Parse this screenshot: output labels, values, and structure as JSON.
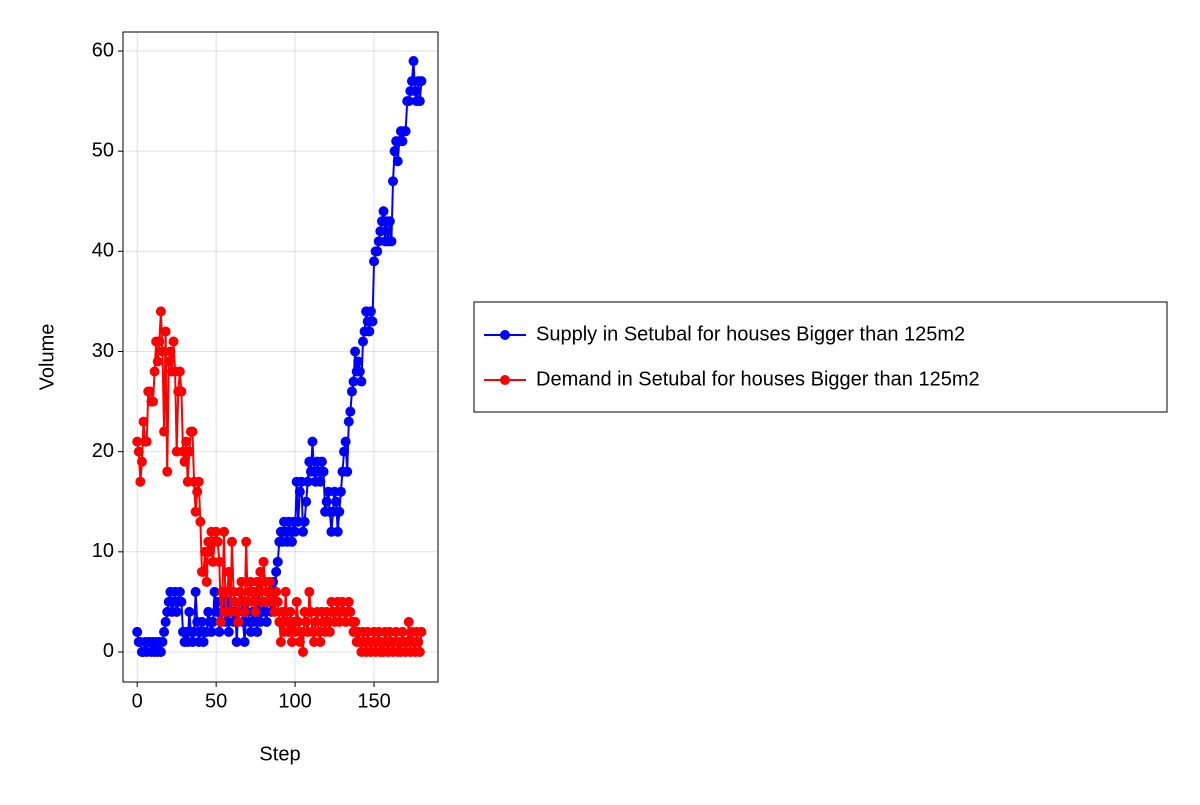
{
  "chart_data": {
    "type": "line",
    "xlabel": "Step",
    "ylabel": "Volume",
    "x": [
      0,
      1,
      2,
      3,
      4,
      5,
      6,
      7,
      8,
      9,
      10,
      11,
      12,
      13,
      14,
      15,
      16,
      17,
      18,
      19,
      20,
      21,
      22,
      23,
      24,
      25,
      26,
      27,
      28,
      29,
      30,
      31,
      32,
      33,
      34,
      35,
      36,
      37,
      38,
      39,
      40,
      41,
      42,
      43,
      44,
      45,
      46,
      47,
      48,
      49,
      50,
      51,
      52,
      53,
      54,
      55,
      56,
      57,
      58,
      59,
      60,
      61,
      62,
      63,
      64,
      65,
      66,
      67,
      68,
      69,
      70,
      71,
      72,
      73,
      74,
      75,
      76,
      77,
      78,
      79,
      80,
      81,
      82,
      83,
      84,
      85,
      86,
      87,
      88,
      89,
      90,
      91,
      92,
      93,
      94,
      95,
      96,
      97,
      98,
      99,
      100,
      101,
      102,
      103,
      104,
      105,
      106,
      107,
      108,
      109,
      110,
      111,
      112,
      113,
      114,
      115,
      116,
      117,
      118,
      119,
      120,
      121,
      122,
      123,
      124,
      125,
      126,
      127,
      128,
      129,
      130,
      131,
      132,
      133,
      134,
      135,
      136,
      137,
      138,
      139,
      140,
      141,
      142,
      143,
      144,
      145,
      146,
      147,
      148,
      149,
      150,
      151,
      152,
      153,
      154,
      155,
      156,
      157,
      158,
      159,
      160,
      161,
      162,
      163,
      164,
      165,
      166,
      167,
      168,
      169,
      170,
      171,
      172,
      173,
      174,
      175,
      176,
      177,
      178,
      179,
      180
    ],
    "series": [
      {
        "name": "Supply in Setubal for houses Bigger than 125m2",
        "color": "#0000ff",
        "values": [
          2,
          1,
          1,
          0,
          0,
          1,
          0,
          1,
          1,
          0,
          1,
          0,
          1,
          0,
          1,
          0,
          1,
          2,
          3,
          4,
          5,
          6,
          4,
          5,
          6,
          4,
          5,
          6,
          5,
          2,
          1,
          2,
          1,
          4,
          2,
          1,
          2,
          6,
          3,
          1,
          2,
          3,
          1,
          2,
          2,
          4,
          3,
          2,
          3,
          6,
          4,
          5,
          2,
          3,
          4,
          5,
          3,
          5,
          2,
          6,
          4,
          3,
          5,
          1,
          4,
          6,
          5,
          3,
          1,
          4,
          5,
          3,
          2,
          4,
          3,
          5,
          2,
          6,
          3,
          4,
          5,
          4,
          3,
          6,
          5,
          4,
          7,
          5,
          8,
          9,
          11,
          12,
          11,
          13,
          12,
          11,
          13,
          12,
          11,
          13,
          12,
          17,
          13,
          16,
          17,
          12,
          13,
          15,
          17,
          19,
          18,
          21,
          18,
          17,
          19,
          18,
          17,
          19,
          18,
          14,
          15,
          16,
          14,
          12,
          14,
          16,
          15,
          12,
          14,
          16,
          18,
          20,
          21,
          18,
          23,
          24,
          26,
          27,
          30,
          28,
          29,
          28,
          27,
          31,
          32,
          34,
          33,
          32,
          34,
          33,
          39,
          40,
          40,
          41,
          42,
          43,
          44,
          41,
          43,
          41,
          43,
          41,
          47,
          50,
          51,
          49,
          51,
          52,
          51,
          52,
          52,
          55,
          55,
          56,
          57,
          59,
          56,
          55,
          57,
          55,
          57
        ]
      },
      {
        "name": "Demand in Setubal for houses Bigger than 125m2",
        "color": "#ff0000",
        "values": [
          21,
          20,
          17,
          19,
          23,
          21,
          21,
          26,
          26,
          25,
          25,
          28,
          31,
          29,
          31,
          34,
          30,
          22,
          32,
          18,
          29,
          30,
          28,
          31,
          28,
          20,
          26,
          28,
          26,
          20,
          19,
          21,
          17,
          20,
          22,
          22,
          17,
          14,
          16,
          17,
          13,
          8,
          8,
          10,
          7,
          11,
          10,
          12,
          9,
          11,
          12,
          11,
          9,
          3,
          6,
          12,
          4,
          6,
          8,
          4,
          11,
          6,
          5,
          4,
          3,
          6,
          7,
          5,
          4,
          11,
          5,
          6,
          7,
          5,
          6,
          4,
          7,
          6,
          8,
          5,
          9,
          7,
          6,
          5,
          7,
          6,
          5,
          4,
          6,
          5,
          3,
          1,
          4,
          2,
          6,
          3,
          2,
          4,
          1,
          3,
          2,
          5,
          3,
          1,
          2,
          0,
          4,
          3,
          2,
          6,
          4,
          2,
          1,
          3,
          4,
          2,
          1,
          4,
          3,
          2,
          4,
          3,
          2,
          5,
          4,
          3,
          4,
          5,
          3,
          4,
          5,
          4,
          3,
          4,
          5,
          4,
          3,
          2,
          3,
          1,
          2,
          1,
          0,
          2,
          1,
          0,
          2,
          1,
          0,
          1,
          2,
          0,
          1,
          2,
          0,
          1,
          0,
          2,
          1,
          0,
          2,
          1,
          0,
          1,
          2,
          0,
          1,
          0,
          2,
          1,
          0,
          1,
          3,
          0,
          2,
          1,
          0,
          2,
          1,
          0,
          2
        ]
      }
    ],
    "xlim": [
      -9,
      190.5
    ],
    "ylim": [
      -3,
      61.9
    ],
    "xticks": [
      0,
      50,
      100,
      150
    ],
    "yticks": [
      0,
      10,
      20,
      30,
      40,
      50,
      60
    ],
    "grid": true,
    "legend": "right"
  }
}
